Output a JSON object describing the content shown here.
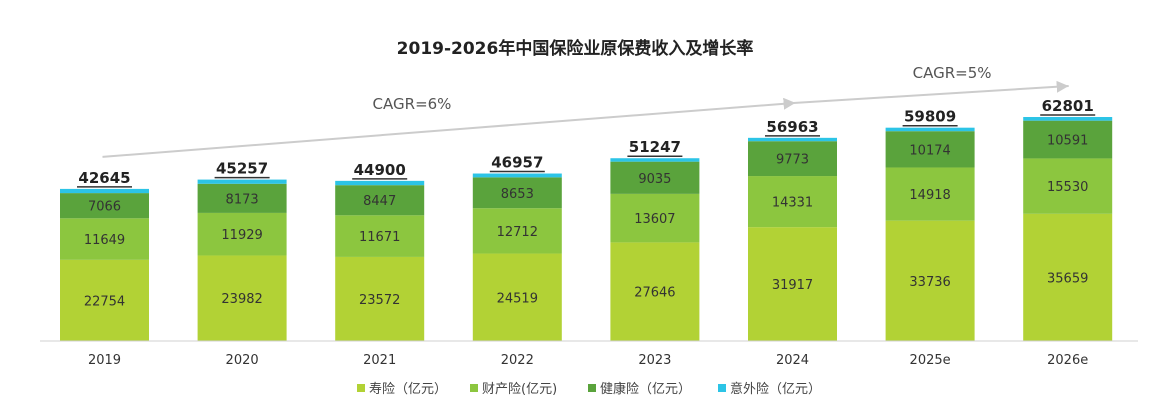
{
  "chart_data": {
    "type": "bar",
    "stacked": true,
    "title": "2019-2026年中国保险业原保费收入及增长率",
    "categories": [
      "2019",
      "2020",
      "2021",
      "2022",
      "2023",
      "2024",
      "2025e",
      "2026e"
    ],
    "series": [
      {
        "name": "寿险（亿元）",
        "color": "#b2d235",
        "values": [
          22754,
          23982,
          23572,
          24519,
          27646,
          31917,
          33736,
          35659
        ]
      },
      {
        "name": "财产险(亿元)",
        "color": "#8cc63f",
        "values": [
          11649,
          11929,
          11671,
          12712,
          13607,
          14331,
          14918,
          15530
        ]
      },
      {
        "name": "健康险（亿元）",
        "color": "#5aa33c",
        "values": [
          7066,
          8173,
          8447,
          8653,
          9035,
          9773,
          10174,
          10591
        ]
      },
      {
        "name": "意外险（亿元）",
        "color": "#2cc4e6",
        "values": [
          1176,
          1173,
          1210,
          1073,
          959,
          942,
          981,
          1021
        ]
      }
    ],
    "totals": [
      42645,
      45257,
      44900,
      46957,
      51247,
      56963,
      59809,
      62801
    ],
    "annotations": [
      {
        "text": "CAGR=6%",
        "from": "2019",
        "to": "2024"
      },
      {
        "text": "CAGR=5%",
        "from": "2024",
        "to": "2026e"
      }
    ],
    "ylim": [
      0,
      66000
    ],
    "grid": false,
    "legend_position": "bottom"
  }
}
